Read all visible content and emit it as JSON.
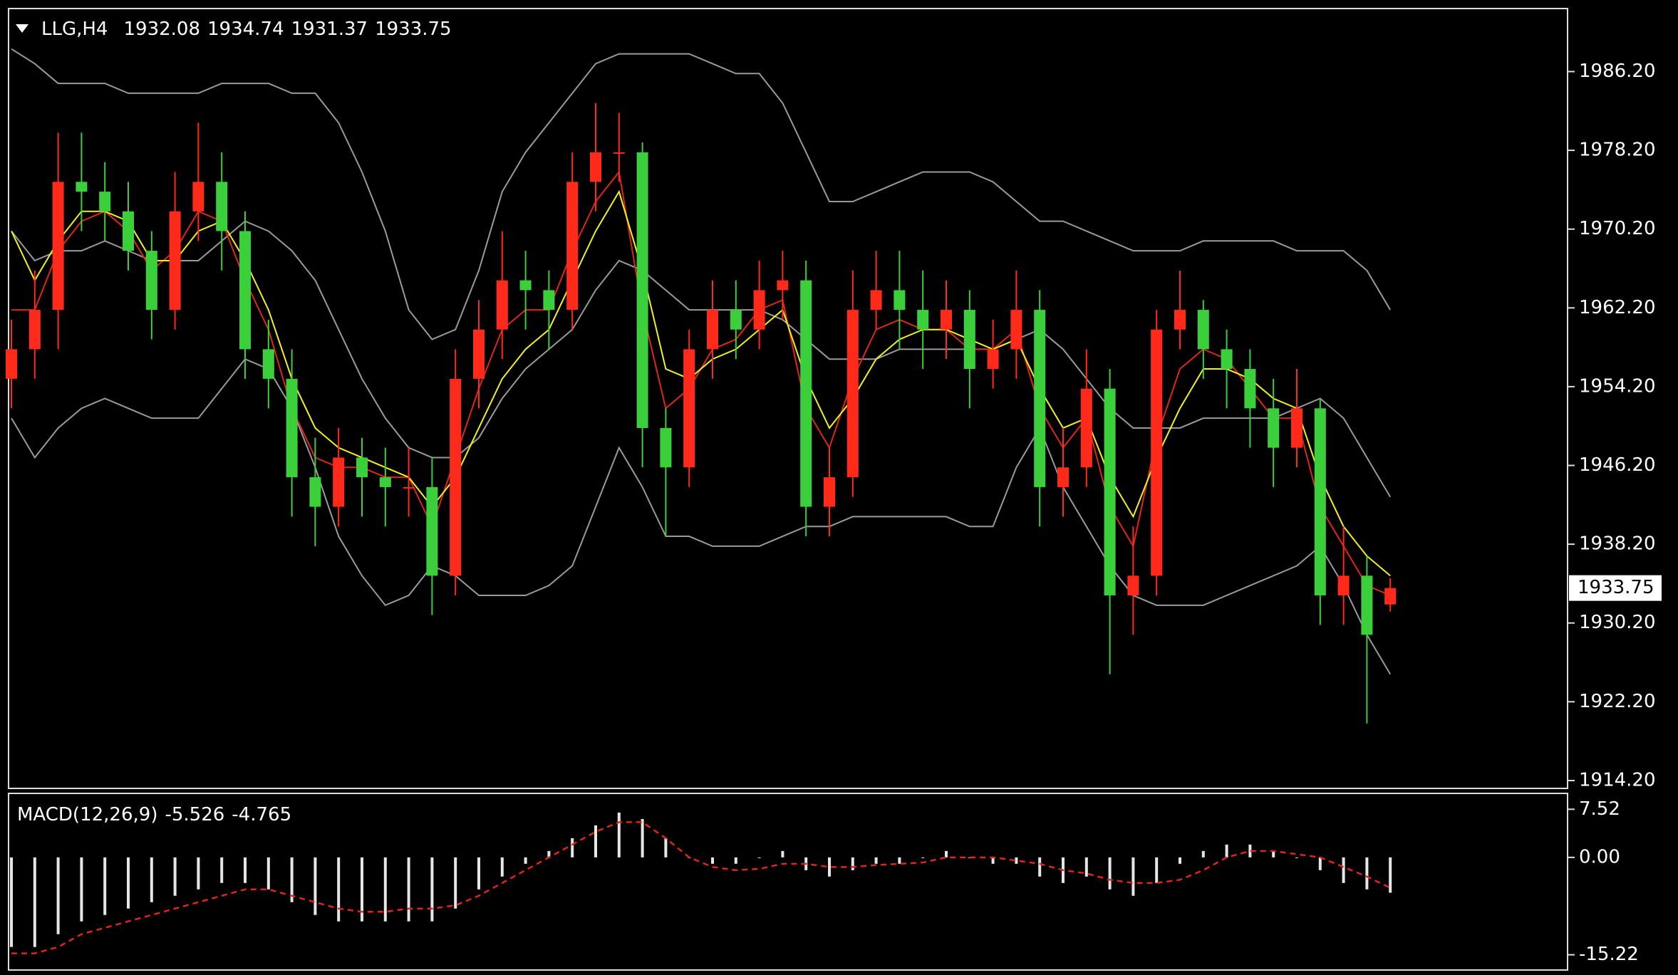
{
  "chart_data": [
    {
      "type": "candlestick",
      "title": "LLG,H4",
      "open": [
        1955,
        1958,
        1962,
        1975,
        1974,
        1972,
        1968,
        1962,
        1972,
        1975,
        1970,
        1958,
        1955,
        1945,
        1942,
        1947,
        1945,
        1944,
        1944,
        1935,
        1955,
        1960,
        1965,
        1964,
        1962,
        1975,
        1978,
        1978,
        1950,
        1946,
        1958,
        1962,
        1960,
        1964,
        1965,
        1942,
        1945,
        1962,
        1964,
        1962,
        1960,
        1962,
        1956,
        1958,
        1962,
        1944,
        1946,
        1954,
        1933,
        1935,
        1960,
        1962,
        1958,
        1956,
        1952,
        1948,
        1952,
        1933,
        1935,
        1932.08
      ],
      "high": [
        1961,
        1966,
        1980,
        1980,
        1977,
        1975,
        1970,
        1976,
        1981,
        1978,
        1972,
        1961,
        1958,
        1949,
        1950,
        1949,
        1948,
        1948,
        1947,
        1958,
        1963,
        1970,
        1968,
        1966,
        1978,
        1983,
        1982,
        1979,
        1952,
        1960,
        1965,
        1965,
        1967,
        1968,
        1967,
        1948,
        1966,
        1968,
        1968,
        1966,
        1965,
        1964,
        1961,
        1966,
        1964,
        1950,
        1958,
        1956,
        1940,
        1962,
        1966,
        1963,
        1960,
        1958,
        1955,
        1956,
        1953,
        1940,
        1937,
        1934.74
      ],
      "low": [
        1952,
        1955,
        1958,
        1970,
        1969,
        1966,
        1959,
        1960,
        1969,
        1966,
        1955,
        1952,
        1941,
        1938,
        1940,
        1941,
        1940,
        1941,
        1931,
        1933,
        1952,
        1957,
        1960,
        1958,
        1960,
        1972,
        1975,
        1946,
        1939,
        1944,
        1955,
        1957,
        1958,
        1961,
        1939,
        1939,
        1943,
        1960,
        1958,
        1956,
        1957,
        1952,
        1954,
        1955,
        1940,
        1941,
        1944,
        1925,
        1929,
        1933,
        1958,
        1955,
        1952,
        1948,
        1944,
        1946,
        1930,
        1930,
        1920,
        1931.37
      ],
      "close": [
        1958,
        1962,
        1975,
        1974,
        1972,
        1968,
        1962,
        1972,
        1975,
        1970,
        1958,
        1955,
        1945,
        1942,
        1947,
        1945,
        1944,
        1944,
        1935,
        1955,
        1960,
        1965,
        1964,
        1962,
        1975,
        1978,
        1978,
        1950,
        1946,
        1958,
        1962,
        1960,
        1964,
        1965,
        1942,
        1945,
        1962,
        1964,
        1962,
        1960,
        1962,
        1956,
        1958,
        1962,
        1944,
        1946,
        1954,
        1933,
        1935,
        1960,
        1962,
        1958,
        1956,
        1952,
        1948,
        1952,
        1933,
        1935,
        1929,
        1933.75
      ],
      "up_color": "#ff2a1a",
      "down_color": "#3ccf3c",
      "overlays": [
        {
          "color": "#9a9a9a",
          "values": [
            1988.5,
            1987,
            1985,
            1985,
            1985,
            1984,
            1984,
            1984,
            1984,
            1985,
            1985,
            1985,
            1984,
            1984,
            1981,
            1976,
            1970,
            1962,
            1959,
            1960,
            1966,
            1974,
            1978,
            1981,
            1984,
            1987,
            1988,
            1988,
            1988,
            1988,
            1987,
            1986,
            1986,
            1983,
            1978,
            1973,
            1973,
            1974,
            1975,
            1976,
            1976,
            1976,
            1975,
            1973,
            1971,
            1971,
            1970,
            1969,
            1968,
            1968,
            1968,
            1969,
            1969,
            1969,
            1969,
            1968,
            1968,
            1968,
            1966,
            1962
          ]
        },
        {
          "color": "#9a9a9a",
          "values": [
            1970,
            1967,
            1968,
            1968,
            1969,
            1968,
            1967,
            1967,
            1967,
            1969,
            1971,
            1970,
            1968,
            1965,
            1960,
            1955,
            1951,
            1948,
            1947,
            1947,
            1949,
            1953,
            1956,
            1958,
            1960,
            1964,
            1967,
            1966,
            1964,
            1962,
            1962,
            1962,
            1962,
            1961,
            1959,
            1957,
            1957,
            1957,
            1958,
            1958,
            1958,
            1958,
            1958,
            1959,
            1960,
            1958,
            1955,
            1952,
            1950,
            1950,
            1950,
            1951,
            1951,
            1951,
            1951,
            1952,
            1953,
            1951,
            1947,
            1943
          ]
        },
        {
          "color": "#9a9a9a",
          "values": [
            1951,
            1947,
            1950,
            1952,
            1953,
            1952,
            1951,
            1951,
            1951,
            1954,
            1957,
            1956,
            1952,
            1946,
            1939,
            1935,
            1932,
            1933,
            1936,
            1935,
            1933,
            1933,
            1933,
            1934,
            1936,
            1942,
            1948,
            1944,
            1939,
            1939,
            1938,
            1938,
            1938,
            1939,
            1940,
            1940,
            1941,
            1941,
            1941,
            1941,
            1941,
            1940,
            1940,
            1946,
            1950,
            1944,
            1940,
            1936,
            1933,
            1932,
            1932,
            1932,
            1933,
            1934,
            1935,
            1936,
            1938,
            1934,
            1929,
            1925
          ]
        },
        {
          "color": "#e0261a",
          "values": [
            1962,
            1962,
            1968,
            1971,
            1972,
            1970,
            1966,
            1968,
            1972,
            1971,
            1965,
            1960,
            1952,
            1947,
            1946,
            1946,
            1945,
            1945,
            1940,
            1947,
            1954,
            1960,
            1962,
            1962,
            1968,
            1973,
            1976,
            1962,
            1952,
            1954,
            1958,
            1959,
            1962,
            1963,
            1952,
            1948,
            1955,
            1960,
            1961,
            1960,
            1960,
            1958,
            1958,
            1960,
            1952,
            1948,
            1951,
            1942,
            1938,
            1949,
            1956,
            1958,
            1957,
            1954,
            1951,
            1951,
            1942,
            1938,
            1934,
            1933
          ]
        },
        {
          "color": "#f2f21a",
          "values": [
            1970,
            1965,
            1969,
            1972,
            1972,
            1971,
            1967,
            1967,
            1970,
            1971,
            1967,
            1962,
            1955,
            1950,
            1948,
            1947,
            1946,
            1945,
            1942,
            1945,
            1950,
            1955,
            1958,
            1960,
            1965,
            1970,
            1974,
            1966,
            1956,
            1955,
            1957,
            1958,
            1960,
            1962,
            1955,
            1950,
            1953,
            1957,
            1959,
            1960,
            1960,
            1959,
            1958,
            1959,
            1954,
            1950,
            1951,
            1945,
            1941,
            1947,
            1952,
            1956,
            1956,
            1955,
            1953,
            1952,
            1945,
            1940,
            1937,
            1935
          ]
        }
      ],
      "ylim": [
        1913.4,
        1992.6
      ],
      "yticks": [
        {
          "value": 1914.2,
          "label": "1914.20"
        },
        {
          "value": 1922.2,
          "label": "1922.20"
        },
        {
          "value": 1930.2,
          "label": "1930.20"
        },
        {
          "value": 1938.2,
          "label": "1938.20"
        },
        {
          "value": 1946.2,
          "label": "1946.20"
        },
        {
          "value": 1954.2,
          "label": "1954.20"
        },
        {
          "value": 1962.2,
          "label": "1962.20"
        },
        {
          "value": 1970.2,
          "label": "1970.20"
        },
        {
          "value": 1978.2,
          "label": "1978.20"
        },
        {
          "value": 1986.2,
          "label": "1986.20"
        }
      ]
    },
    {
      "type": "macd",
      "title": "MACD(12,26,9)",
      "histogram": {
        "color": "#e6e6e6",
        "values": [
          -14,
          -14,
          -12,
          -10,
          -9,
          -8,
          -7,
          -6,
          -5,
          -4,
          -4,
          -5,
          -7,
          -9,
          -10,
          -10,
          -10,
          -10,
          -10,
          -8,
          -5,
          -3,
          -1,
          1,
          3,
          5,
          7,
          6,
          3,
          0,
          -1,
          -1,
          0,
          1,
          -2,
          -3,
          -2,
          -1,
          -1,
          0,
          1,
          0,
          -1,
          -1,
          -3,
          -4,
          -3,
          -5,
          -6,
          -4,
          -1,
          1,
          2,
          2,
          1,
          0,
          -2,
          -4,
          -5,
          -5.526
        ]
      },
      "signal": {
        "color": "#e0261a",
        "dashed": true,
        "values": [
          -15,
          -15,
          -14,
          -12,
          -11,
          -10,
          -9,
          -8,
          -7,
          -6,
          -5,
          -5,
          -6,
          -7,
          -8,
          -8.5,
          -8.5,
          -8,
          -8,
          -7.5,
          -6,
          -4,
          -2,
          0,
          2,
          4,
          5.5,
          5.5,
          3,
          0,
          -1.5,
          -2,
          -1.8,
          -1,
          -1,
          -1.5,
          -1.5,
          -1.2,
          -1,
          -0.8,
          0,
          0,
          0,
          -0.5,
          -1,
          -2,
          -2.5,
          -3.5,
          -4,
          -4,
          -3.5,
          -2,
          0,
          1,
          1,
          0.5,
          0,
          -1.5,
          -3,
          -4.765
        ]
      },
      "ylim": [
        -17.6,
        10.0
      ],
      "yticks": [
        -15.22,
        {
          "value": 0,
          "label": "0.00"
        },
        7.52
      ]
    }
  ]
}
